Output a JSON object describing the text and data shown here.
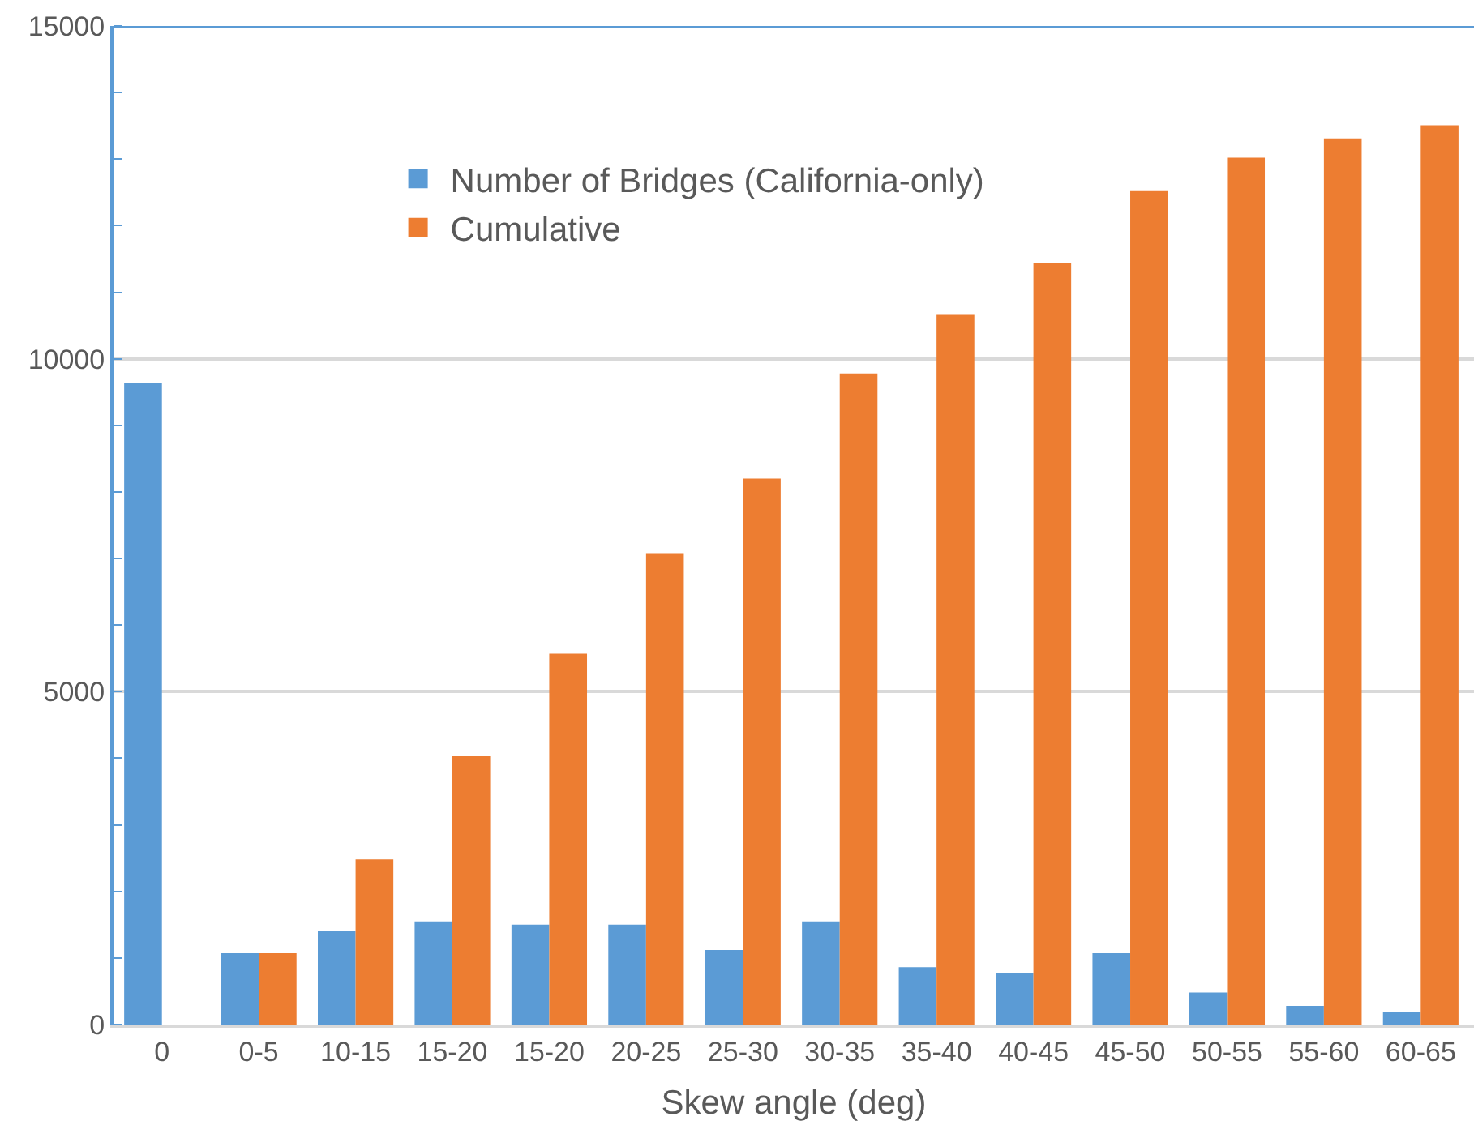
{
  "chart_data": {
    "type": "bar",
    "xlabel": "Skew angle (deg)",
    "categories": [
      "0",
      "0-5",
      "10-15",
      "15-20",
      "15-20",
      "20-25",
      "25-30",
      "30-35",
      "35-40",
      "40-45",
      "45-50",
      "50-55",
      "55-60",
      "60-65"
    ],
    "series": [
      {
        "name": "Number of Bridges (California-only)",
        "color": "#5b9bd5",
        "values": [
          9630,
          1070,
          1400,
          1550,
          1500,
          1500,
          1120,
          1550,
          860,
          780,
          1070,
          480,
          280,
          190
        ]
      },
      {
        "name": "Cumulative",
        "color": "#ed7d31",
        "values": [
          null,
          1070,
          2480,
          4030,
          5570,
          7080,
          8200,
          9780,
          10660,
          11440,
          12520,
          13020,
          13310,
          13510
        ]
      }
    ],
    "ylim": [
      0,
      15000
    ],
    "yticks": [
      0,
      5000,
      10000,
      15000
    ],
    "grid": "y",
    "legend": "top left"
  }
}
